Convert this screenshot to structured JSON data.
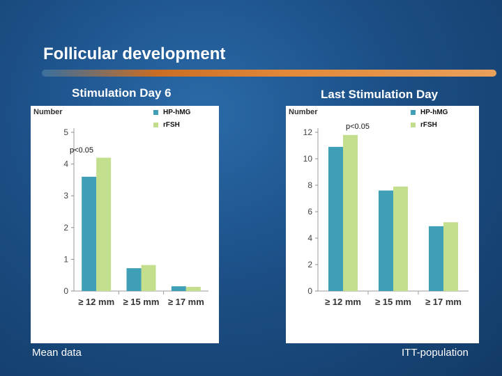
{
  "slide": {
    "title": "Follicular development",
    "footnote_left": "Mean data",
    "footnote_right": "ITT-population"
  },
  "colors": {
    "hp_hmg": "#3f9fb6",
    "r_fsh": "#c3de8c",
    "accent_bar": "#e3893a"
  },
  "chart_data": [
    {
      "type": "bar",
      "title": "Stimulation Day 6",
      "ylabel": "Number",
      "categories": [
        "≥ 12 mm",
        "≥ 15 mm",
        "≥ 17 mm"
      ],
      "yticks": [
        "0",
        "1",
        "2",
        "3",
        "4",
        "5"
      ],
      "ylim": [
        0,
        5
      ],
      "series": [
        {
          "name": "HP-hMG",
          "values": [
            3.6,
            0.72,
            0.15
          ]
        },
        {
          "name": "rFSH",
          "values": [
            4.2,
            0.82,
            0.13
          ]
        }
      ],
      "annotation": "p<0.05",
      "legend": "top-right"
    },
    {
      "type": "bar",
      "title": "Last Stimulation Day",
      "ylabel": "Number",
      "categories": [
        "≥ 12 mm",
        "≥ 15 mm",
        "≥ 17 mm"
      ],
      "yticks": [
        "0",
        "2",
        "4",
        "6",
        "8",
        "10",
        "12"
      ],
      "ylim": [
        0,
        12
      ],
      "series": [
        {
          "name": "HP-hMG",
          "values": [
            10.9,
            7.6,
            4.9
          ]
        },
        {
          "name": "rFSH",
          "values": [
            11.8,
            7.9,
            5.2
          ]
        }
      ],
      "annotation": "p<0.05",
      "legend": "top-right"
    }
  ]
}
